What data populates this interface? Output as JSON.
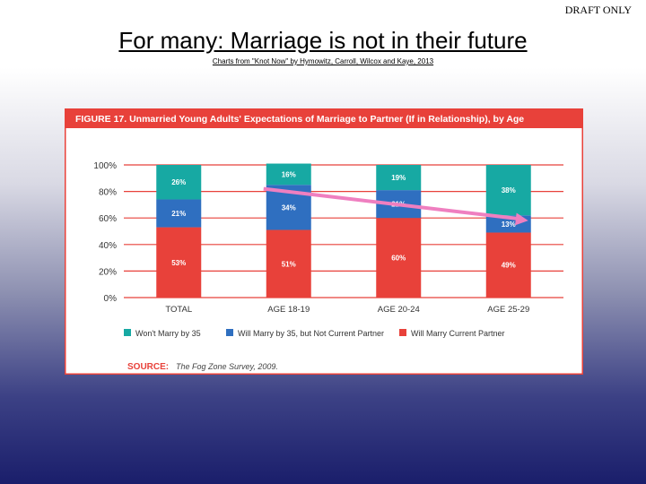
{
  "watermark": "DRAFT ONLY",
  "title": "For many: Marriage is not in their future",
  "subtitle": "Charts from \"Knot Now\" by Hymowitz, Carroll, Wilcox and Kaye, 2013",
  "colors": {
    "header": "#e8413a",
    "border": "#e8413a",
    "wont_marry": "#17a9a3",
    "not_current": "#2f6fc0",
    "current": "#e8413a",
    "arrow": "#ef7fc0",
    "source_label": "#e8413a"
  },
  "chart_data": {
    "type": "bar",
    "stacked": true,
    "title": "FIGURE 17. Unmarried Young Adults' Expectations of Marriage to Partner (If in Relationship), by Age",
    "categories": [
      "TOTAL",
      "AGE 18-19",
      "AGE 20-24",
      "AGE 25-29"
    ],
    "series": [
      {
        "name": "Will Marry Current Partner",
        "values": [
          53,
          51,
          60,
          49
        ],
        "labels": [
          "53%",
          "51%",
          "60%",
          "49%"
        ]
      },
      {
        "name": "Will Marry by 35, but Not Current Partner",
        "values": [
          21,
          34,
          21,
          13
        ],
        "labels": [
          "21%",
          "34%",
          "21%",
          "13%"
        ]
      },
      {
        "name": "Won't Marry by 35",
        "values": [
          26,
          16,
          19,
          38
        ],
        "labels": [
          "26%",
          "16%",
          "19%",
          "38%"
        ]
      }
    ],
    "legend_order": [
      "Won't Marry by 35",
      "Will Marry by 35, but Not Current Partner",
      "Will Marry Current Partner"
    ],
    "yticks": [
      "0%",
      "20%",
      "40%",
      "60%",
      "80%",
      "100%"
    ],
    "ylim": [
      0,
      100
    ],
    "grid": true,
    "legend_position": "bottom",
    "source_label": "SOURCE:",
    "source_text": "The Fog Zone Survey, 2009.",
    "annotation": {
      "type": "arrow",
      "from_category": "AGE 18-19",
      "to_category": "AGE 25-29",
      "from_value": 82,
      "to_value": 58
    }
  }
}
